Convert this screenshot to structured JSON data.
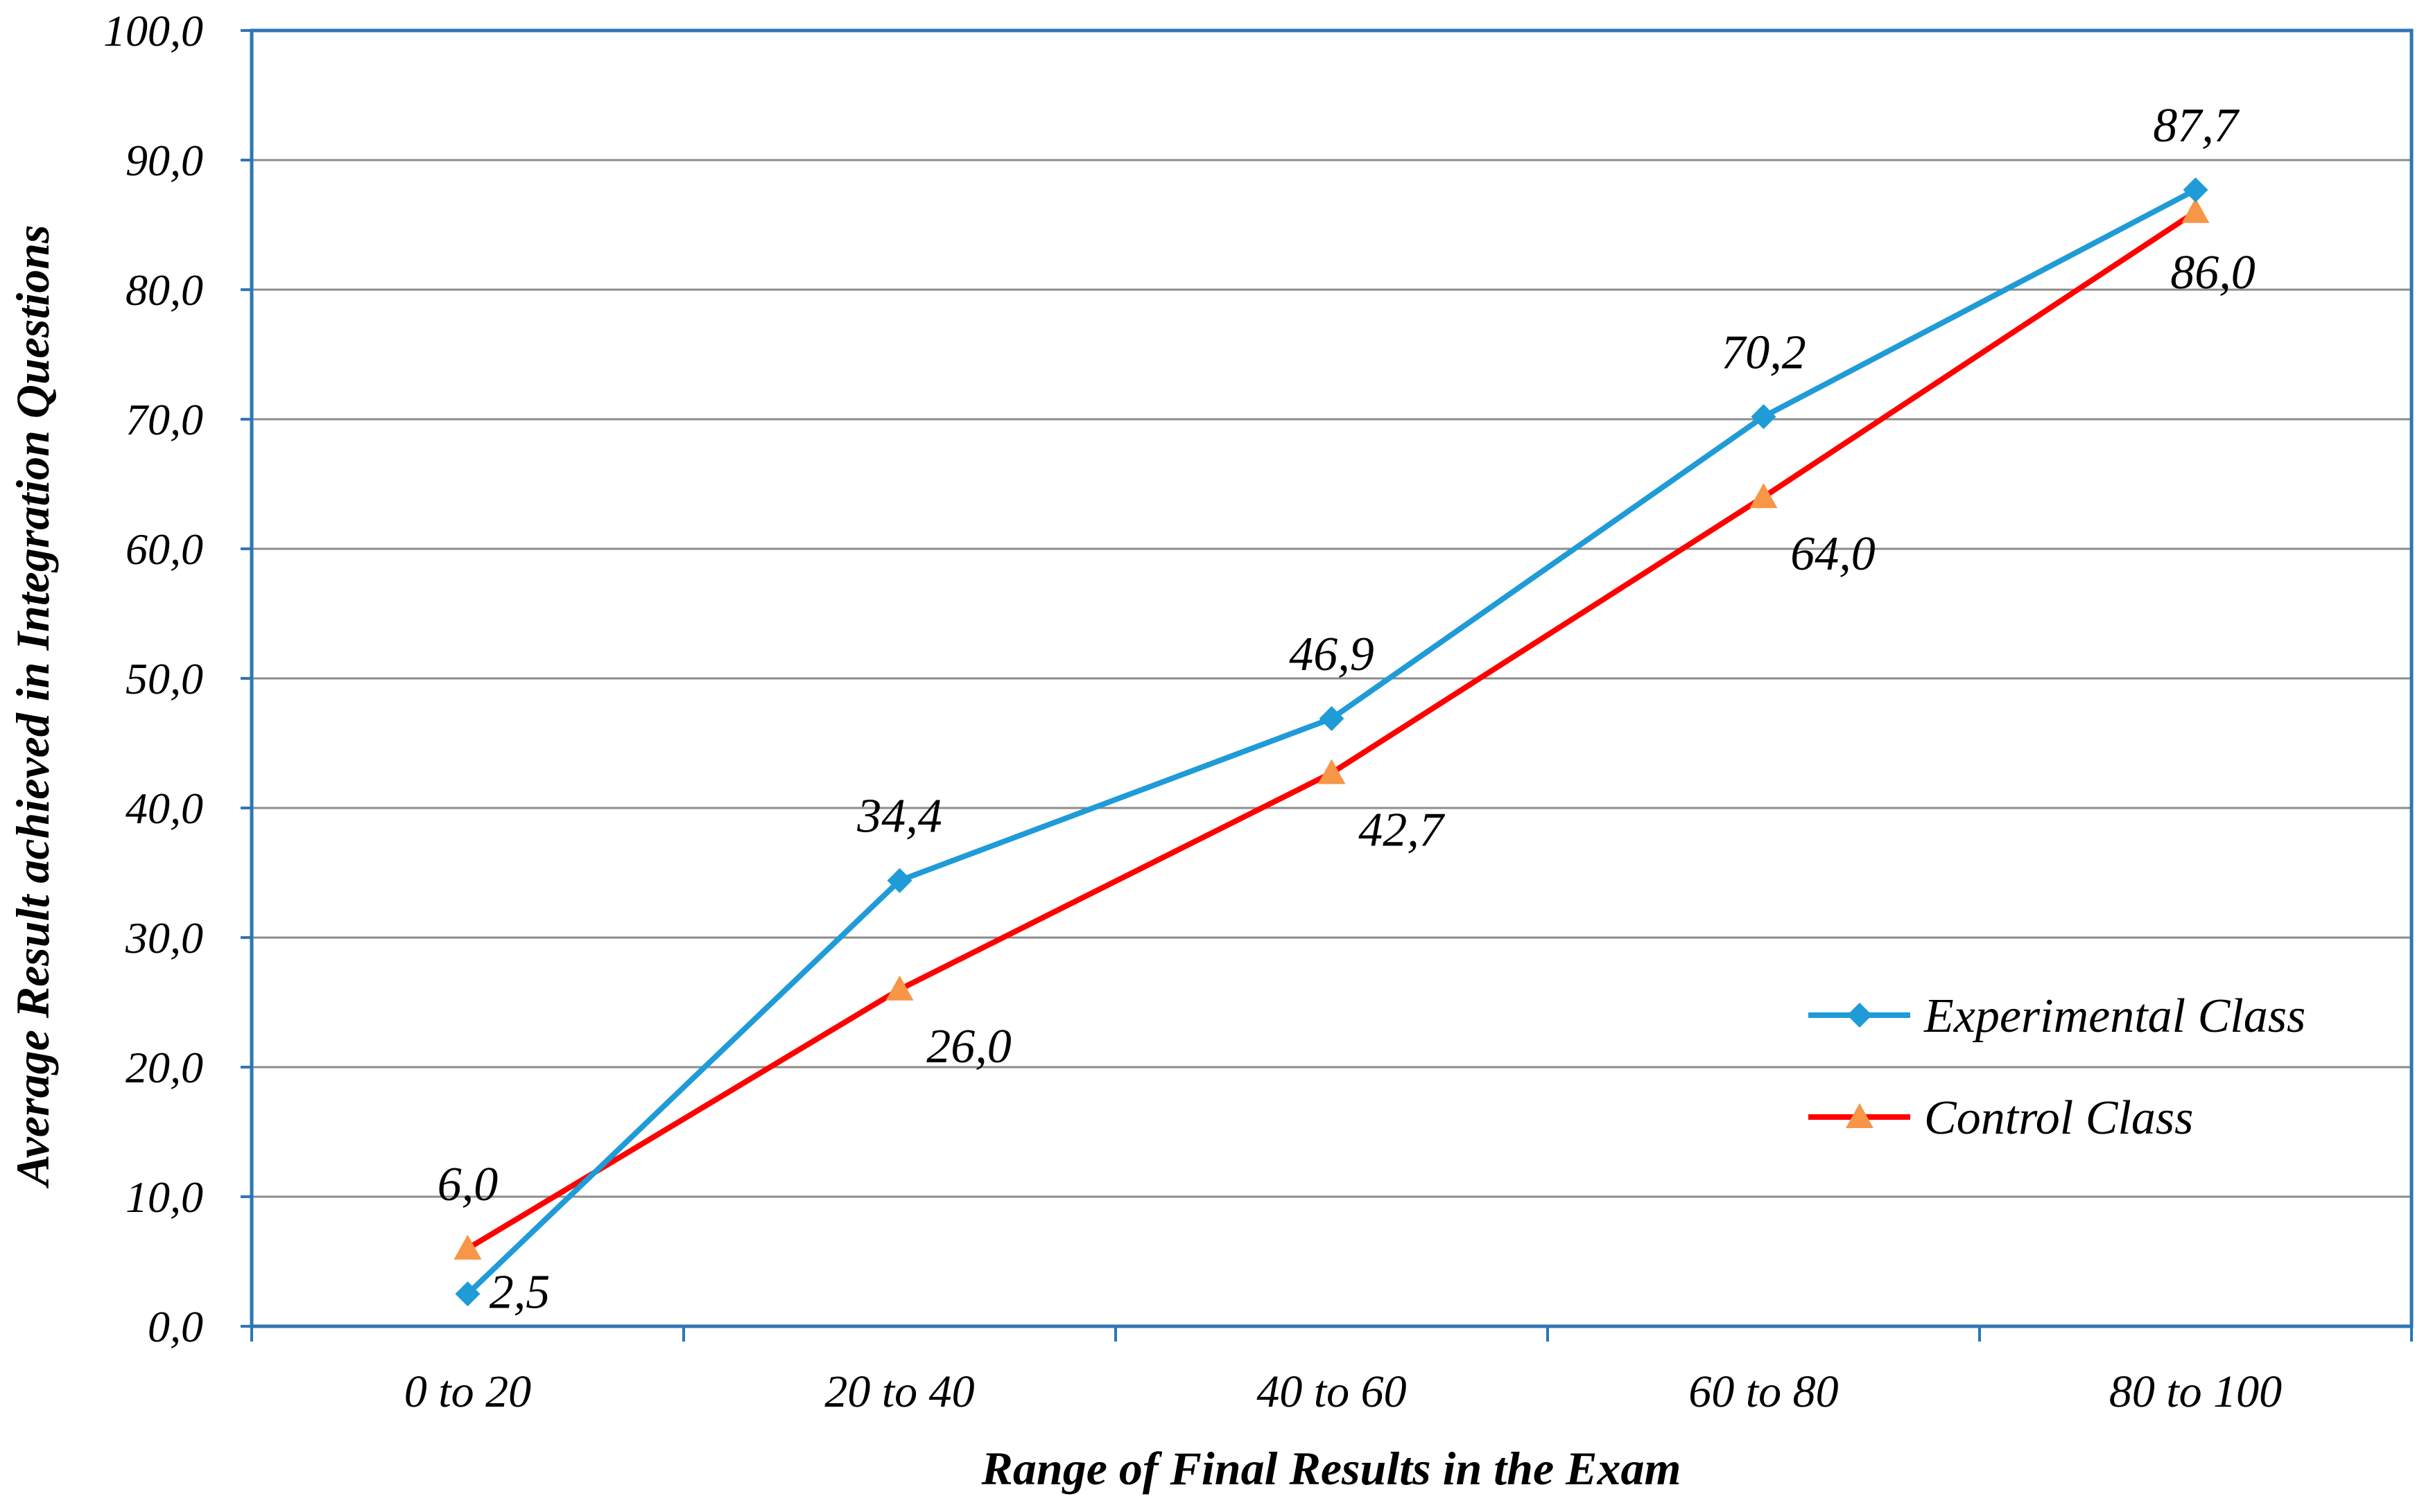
{
  "chart_data": {
    "type": "line",
    "title": "",
    "xlabel": "Range of Final Results in the Exam",
    "ylabel": "Average Result achieved in Integration Questions",
    "categories": [
      "0 to 20",
      "20 to 40",
      "40 to 60",
      "60 to 80",
      "80 to 100"
    ],
    "ylim": [
      0,
      100
    ],
    "y_ticks": [
      "0,0",
      "10,0",
      "20,0",
      "30,0",
      "40,0",
      "50,0",
      "60,0",
      "70,0",
      "80,0",
      "90,0",
      "100,0"
    ],
    "grid": true,
    "legend_position": "bottom-right",
    "series": [
      {
        "name": "Experimental Class",
        "values": [
          2.5,
          34.4,
          46.9,
          70.2,
          87.7
        ],
        "labels": [
          "2,5",
          "34,4",
          "46,9",
          "70,2",
          "87,7"
        ],
        "color": "#1f9bd7",
        "marker": "diamond"
      },
      {
        "name": "Control Class",
        "values": [
          6.0,
          26.0,
          42.7,
          64.0,
          86.0
        ],
        "labels": [
          "6,0",
          "26,0",
          "42,7",
          "64,0",
          "86,0"
        ],
        "color": "#ff0000",
        "marker_color": "#f79646",
        "marker": "triangle"
      }
    ],
    "axis_color": "#2e75b6",
    "grid_color": "#8c8c8c"
  }
}
